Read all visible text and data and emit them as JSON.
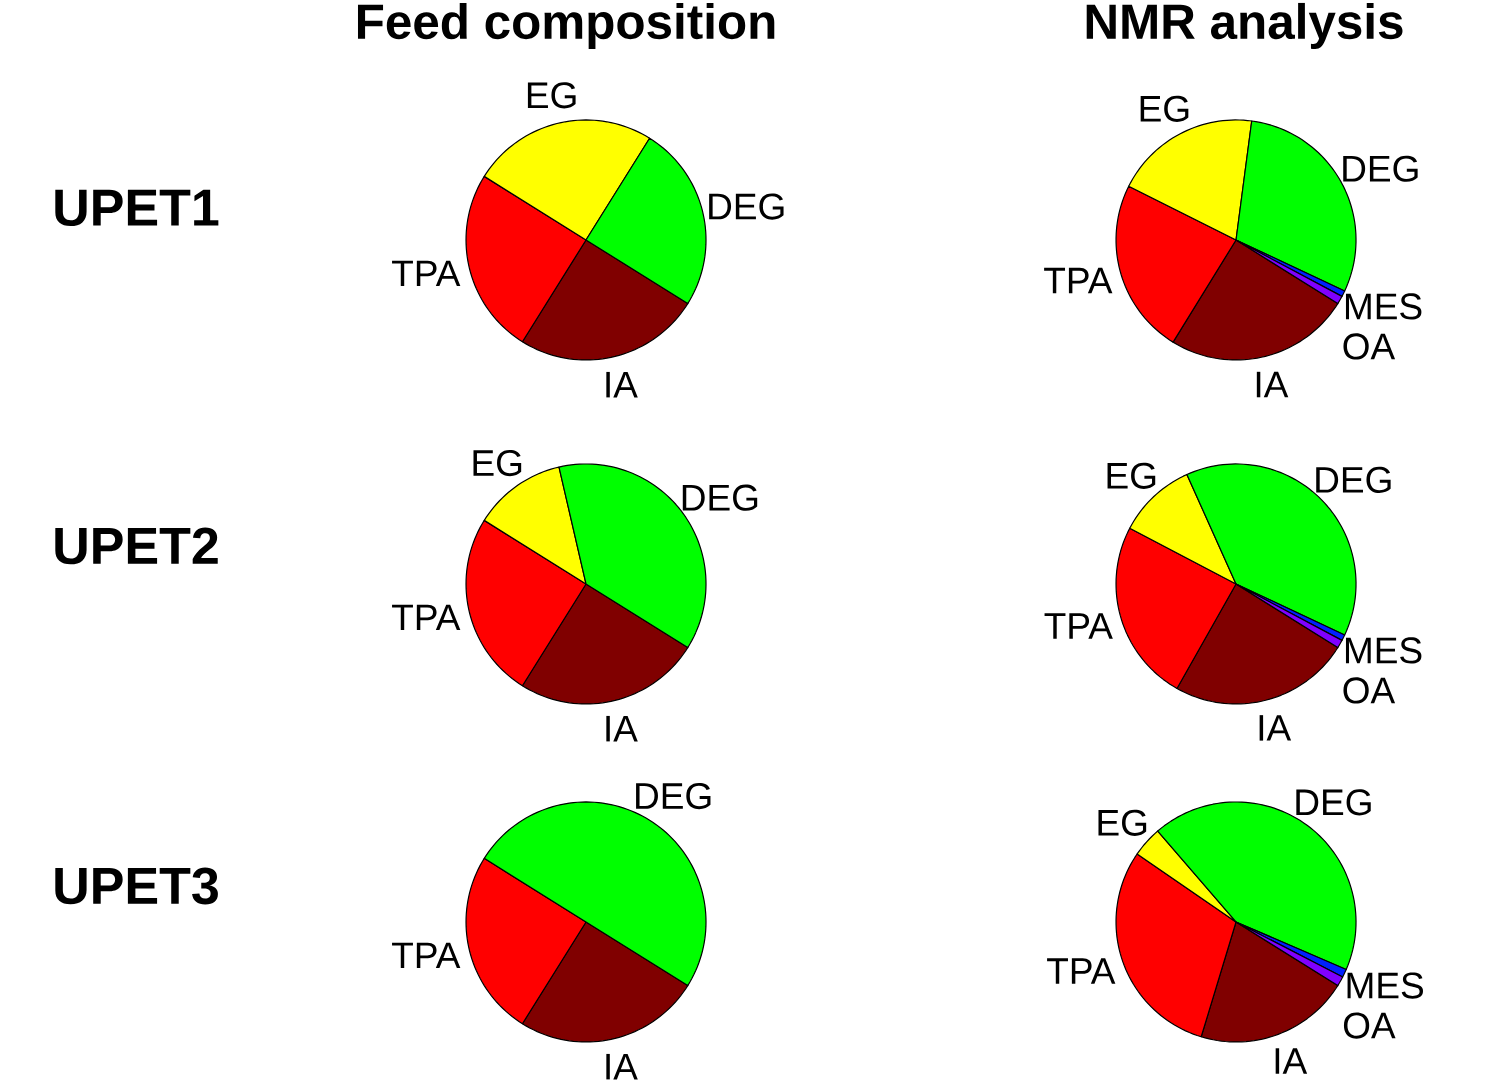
{
  "chart_data": [
    {
      "type": "pie",
      "title": "Feed composition",
      "ylabel": "UPET1",
      "categories": [
        "IA",
        "TPA",
        "EG",
        "DEG"
      ],
      "values": [
        25,
        25,
        25,
        25
      ],
      "colors": [
        "#800000",
        "#ff0000",
        "#ffff00",
        "#00ff00"
      ]
    },
    {
      "type": "pie",
      "title": "NMR analysis",
      "categories": [
        "IA",
        "TPA",
        "EG",
        "DEG",
        "MES",
        "OA"
      ],
      "values": [
        24.9,
        23.6,
        19.7,
        29.9,
        0.8,
        1.1
      ],
      "colors": [
        "#800000",
        "#ff0000",
        "#ffff00",
        "#00ff00",
        "#0020ff",
        "#8000ff"
      ]
    },
    {
      "type": "pie",
      "ylabel": "UPET2",
      "categories": [
        "IA",
        "TPA",
        "EG",
        "DEG"
      ],
      "values": [
        25,
        25,
        12.5,
        37.5
      ],
      "colors": [
        "#800000",
        "#ff0000",
        "#ffff00",
        "#00ff00"
      ]
    },
    {
      "type": "pie",
      "categories": [
        "IA",
        "TPA",
        "EG",
        "DEG",
        "MES",
        "OA"
      ],
      "values": [
        24.3,
        24.5,
        10.6,
        38.7,
        0.8,
        1.1
      ],
      "colors": [
        "#800000",
        "#ff0000",
        "#ffff00",
        "#00ff00",
        "#0020ff",
        "#8000ff"
      ]
    },
    {
      "type": "pie",
      "ylabel": "UPET3",
      "categories": [
        "IA",
        "TPA",
        "DEG"
      ],
      "values": [
        25,
        25,
        50
      ],
      "colors": [
        "#800000",
        "#ff0000",
        "#00ff00"
      ]
    },
    {
      "type": "pie",
      "categories": [
        "IA",
        "TPA",
        "EG",
        "DEG",
        "MES",
        "OA"
      ],
      "values": [
        20.8,
        29.9,
        4.1,
        42.8,
        1.1,
        1.3
      ],
      "colors": [
        "#800000",
        "#ff0000",
        "#ffff00",
        "#00ff00",
        "#0020ff",
        "#8000ff"
      ]
    }
  ]
}
